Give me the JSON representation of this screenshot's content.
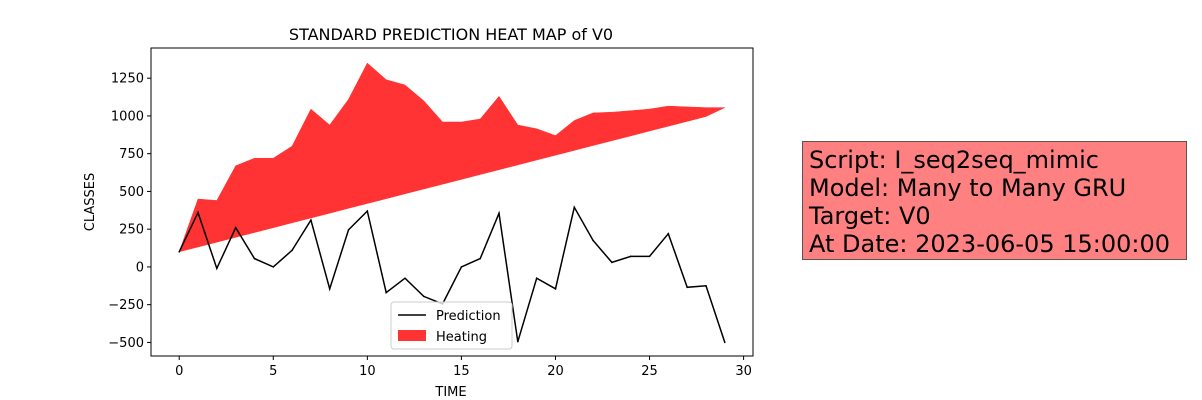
{
  "chart_data": {
    "type": "area",
    "title": "STANDARD PREDICTION HEAT MAP of V0",
    "xlabel": "TIME",
    "ylabel": "CLASSES",
    "xlim": [
      -1.5,
      30.5
    ],
    "ylim": [
      -590,
      1450
    ],
    "xticks": [
      0,
      5,
      10,
      15,
      20,
      25,
      30
    ],
    "yticks": [
      -500,
      -250,
      0,
      250,
      500,
      750,
      1000,
      1250
    ],
    "xtick_labels": [
      "0",
      "5",
      "10",
      "15",
      "20",
      "25",
      "30"
    ],
    "ytick_labels": [
      "−500",
      "−250",
      "0",
      "250",
      "500",
      "750",
      "1000",
      "1250"
    ],
    "legend_position": "lower center",
    "grid": false,
    "x": [
      0,
      1,
      2,
      3,
      4,
      5,
      6,
      7,
      8,
      9,
      10,
      11,
      12,
      13,
      14,
      15,
      16,
      17,
      18,
      19,
      20,
      21,
      22,
      23,
      24,
      25,
      26,
      27,
      28,
      29
    ],
    "series": [
      {
        "name": "Prediction",
        "kind": "line",
        "color": "#000000",
        "values": [
          100,
          360,
          -10,
          260,
          55,
          0,
          110,
          310,
          -145,
          245,
          370,
          -170,
          -75,
          -195,
          -245,
          0,
          55,
          355,
          -495,
          -75,
          -145,
          395,
          175,
          30,
          70,
          70,
          220,
          -135,
          -125,
          -500
        ]
      },
      {
        "name": "Heating",
        "kind": "fill_between",
        "color": "#ff3333",
        "upper": [
          100,
          450,
          440,
          670,
          720,
          720,
          800,
          1045,
          940,
          1110,
          1350,
          1240,
          1205,
          1100,
          960,
          960,
          980,
          1130,
          940,
          915,
          870,
          970,
          1020,
          1025,
          1035,
          1045,
          1065,
          1060,
          1055,
          1055
        ],
        "lower": [
          100,
          132,
          164,
          196,
          228,
          260,
          292,
          324,
          356,
          388,
          420,
          452,
          484,
          516,
          548,
          580,
          612,
          644,
          676,
          708,
          740,
          772,
          804,
          836,
          868,
          900,
          932,
          964,
          996,
          1055
        ]
      }
    ]
  },
  "info_box": {
    "lines": [
      "Script: I_seq2seq_mimic",
      "Model: Many to Many GRU",
      "Target: V0",
      "At Date: 2023-06-05 15:00:00"
    ],
    "background": "#ff8080"
  }
}
